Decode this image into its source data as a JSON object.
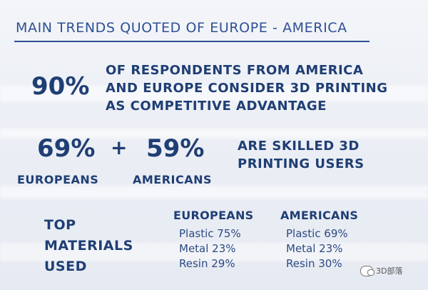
{
  "title": "MAIN TRENDS QUOTED OF EUROPE - AMERICA",
  "headline": {
    "percent": "90%",
    "lines": [
      "OF RESPONDENTS FROM AMERICA",
      "AND EUROPE CONSIDER 3D PRINTING",
      "AS COMPETITIVE ADVANTAGE"
    ]
  },
  "skills": {
    "europeans_percent": "69%",
    "plus": "+",
    "americans_percent": "59%",
    "europeans_label": "EUROPEANS",
    "americans_label": "AMERICANS",
    "statement_lines": [
      "ARE SKILLED 3D",
      "PRINTING USERS"
    ]
  },
  "materials": {
    "heading_lines": [
      "TOP",
      "MATERIALS",
      "USED"
    ],
    "europeans": {
      "header": "EUROPEANS",
      "items": [
        "Plastic 75%",
        "Metal 23%",
        "Resin 29%"
      ]
    },
    "americans": {
      "header": "AMERICANS",
      "items": [
        "Plastic 69%",
        "Metal 23%",
        "Resin 30%"
      ]
    }
  },
  "watermark": {
    "text": "3D部落",
    "icon": "wechat-icon"
  }
}
